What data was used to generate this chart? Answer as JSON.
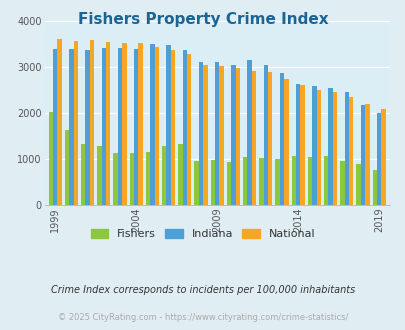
{
  "title": "Fishers Property Crime Index",
  "title_color": "#1a6496",
  "years": [
    1999,
    2000,
    2001,
    2002,
    2003,
    2004,
    2005,
    2006,
    2007,
    2008,
    2009,
    2010,
    2011,
    2012,
    2013,
    2014,
    2015,
    2016,
    2017,
    2018,
    2019
  ],
  "fishers": [
    2020,
    1620,
    1320,
    1290,
    1120,
    1130,
    1150,
    1290,
    1320,
    960,
    980,
    930,
    1050,
    1010,
    990,
    1060,
    1050,
    1070,
    960,
    890,
    760
  ],
  "indiana": [
    3400,
    3400,
    3380,
    3410,
    3420,
    3400,
    3500,
    3480,
    3380,
    3120,
    3110,
    3050,
    3160,
    3050,
    2870,
    2640,
    2600,
    2550,
    2450,
    2180,
    2000
  ],
  "national": [
    3620,
    3580,
    3600,
    3560,
    3530,
    3520,
    3450,
    3380,
    3280,
    3050,
    3020,
    2980,
    2920,
    2890,
    2740,
    2620,
    2510,
    2460,
    2360,
    2200,
    2090
  ],
  "fishers_color": "#8dc63f",
  "indiana_color": "#4d9fd6",
  "national_color": "#f6a623",
  "bg_color": "#e0eef4",
  "plot_bg_color": "#dceef5",
  "ylim": [
    0,
    4000
  ],
  "yticks": [
    0,
    1000,
    2000,
    3000,
    4000
  ],
  "xtick_labels": [
    "1999",
    "2004",
    "2009",
    "2014",
    "2019"
  ],
  "xtick_positions": [
    1999,
    2004,
    2009,
    2014,
    2019
  ],
  "subtitle": "Crime Index corresponds to incidents per 100,000 inhabitants",
  "subtitle_color": "#333333",
  "footer": "© 2025 CityRating.com - https://www.cityrating.com/crime-statistics/",
  "footer_color": "#aaaaaa",
  "legend_labels": [
    "Fishers",
    "Indiana",
    "National"
  ],
  "bar_width": 0.27
}
